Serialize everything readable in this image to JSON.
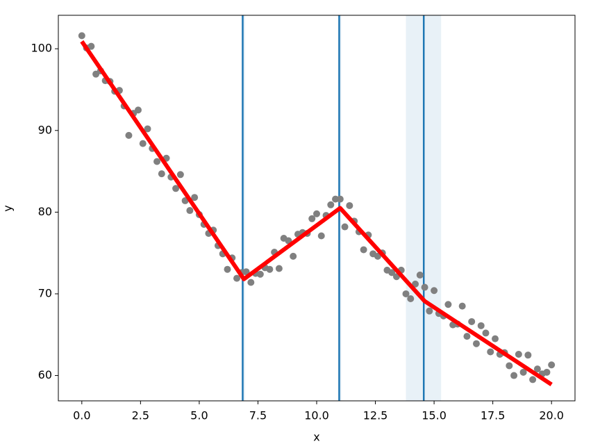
{
  "chart_data": {
    "type": "scatter",
    "x_label": "x",
    "y_label": "y",
    "xlim": [
      -1.0,
      21.0
    ],
    "ylim": [
      56.9,
      104.1
    ],
    "xticks": [
      {
        "value": 0,
        "label": "0.0"
      },
      2.5,
      {
        "value": 5,
        "label": "5.0"
      },
      7.5,
      {
        "value": 10,
        "label": "10.0"
      },
      12.5,
      {
        "value": 15,
        "label": "15.0"
      },
      17.5,
      {
        "value": 20,
        "label": "20.0"
      }
    ],
    "yticks": [
      60,
      70,
      80,
      90,
      100
    ],
    "series": [
      {
        "color": "#808080",
        "x": [
          0,
          0.2,
          0.4,
          0.6,
          0.8,
          1,
          1.2,
          1.4,
          1.6,
          1.8,
          2,
          2.2,
          2.4,
          2.6,
          2.8,
          3,
          3.2,
          3.4,
          3.6,
          3.8,
          4,
          4.2,
          4.4,
          4.6,
          4.8,
          5,
          5.2,
          5.4,
          5.6,
          5.8,
          6,
          6.2,
          6.4,
          6.6,
          6.8,
          7,
          7.2,
          7.4,
          7.6,
          7.8,
          8,
          8.2,
          8.4,
          8.6,
          8.8,
          9,
          9.2,
          9.4,
          9.6,
          9.8,
          10,
          10.2,
          10.4,
          10.6,
          10.8,
          11,
          11.2,
          11.4,
          11.6,
          11.8,
          12,
          12.2,
          12.4,
          12.6,
          12.8,
          13,
          13.2,
          13.4,
          13.6,
          13.8,
          14,
          14.2,
          14.4,
          14.6,
          14.8,
          15,
          15.2,
          15.4,
          15.6,
          15.8,
          16,
          16.2,
          16.4,
          16.6,
          16.8,
          17,
          17.2,
          17.4,
          17.6,
          17.8,
          18,
          18.2,
          18.4,
          18.6,
          18.8,
          19,
          19.2,
          19.4,
          19.6,
          19.8,
          20
        ],
        "values": [
          101.6,
          100.1,
          100.3,
          96.9,
          97.3,
          96.1,
          96.0,
          94.8,
          94.9,
          93.0,
          89.4,
          92.1,
          92.5,
          88.4,
          90.2,
          87.8,
          86.2,
          84.7,
          86.6,
          84.3,
          82.9,
          84.6,
          81.4,
          80.2,
          81.8,
          79.7,
          78.5,
          77.4,
          77.8,
          75.9,
          74.9,
          73.0,
          74.4,
          71.9,
          72.6,
          72.7,
          71.4,
          72.5,
          72.4,
          73.2,
          73.0,
          75.1,
          73.1,
          76.8,
          76.5,
          74.6,
          77.3,
          77.5,
          77.4,
          79.2,
          79.8,
          77.1,
          79.6,
          80.9,
          81.6,
          81.6,
          78.2,
          80.8,
          78.9,
          77.6,
          75.4,
          77.2,
          74.9,
          74.6,
          75.0,
          72.9,
          72.6,
          72.1,
          72.9,
          70.0,
          69.4,
          71.2,
          72.3,
          70.8,
          67.9,
          70.4,
          67.6,
          67.3,
          68.7,
          66.2,
          66.3,
          68.5,
          64.8,
          66.6,
          63.9,
          66.1,
          65.2,
          62.9,
          64.5,
          62.6,
          62.8,
          61.2,
          60.0,
          62.6,
          60.4,
          62.5,
          59.5,
          60.8,
          60.2,
          60.4,
          61.3
        ]
      }
    ],
    "lines": [
      {
        "color": "#ff0000",
        "x": [
          0,
          6.9,
          11.0,
          14.6,
          20.0
        ],
        "values": [
          100.9,
          71.8,
          80.5,
          69.1,
          58.9
        ]
      }
    ],
    "vlines": [
      {
        "color": "#1f77b4",
        "x": 6.85,
        "span": [
          6.8,
          6.95
        ]
      },
      {
        "color": "#1f77b4",
        "x": 10.96,
        "span": [
          10.9,
          11.05
        ]
      },
      {
        "color": "#1f77b4",
        "x": 14.56,
        "span": [
          13.8,
          15.3
        ]
      }
    ]
  }
}
